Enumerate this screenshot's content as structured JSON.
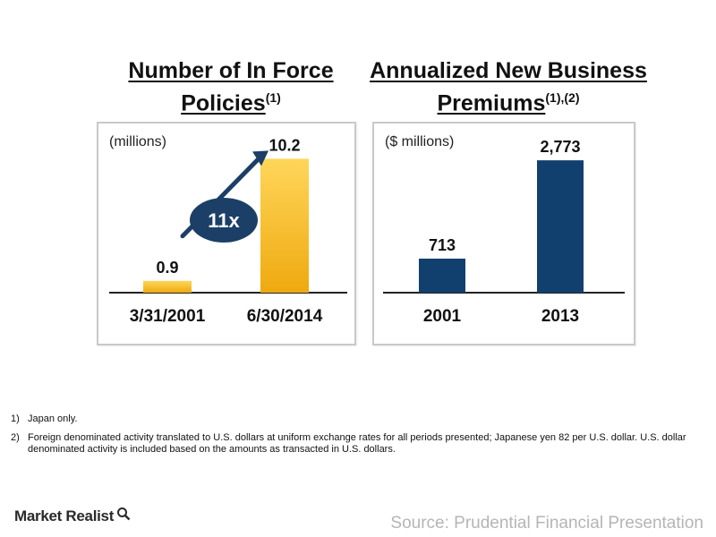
{
  "titles": {
    "left": "Number of In Force Policies",
    "left_sup": "(1)",
    "right": "Annualized New Business Premiums",
    "right_sup": "(1),(2)"
  },
  "chart_data": [
    {
      "type": "bar",
      "unit_label": "(millions)",
      "categories": [
        "3/31/2001",
        "6/30/2014"
      ],
      "values": [
        0.9,
        10.2
      ],
      "value_labels": [
        "0.9",
        "10.2"
      ],
      "ylim": [
        0,
        12
      ],
      "color": "#F5B623",
      "annotation": "11x",
      "annotation_color": "#1B3F66"
    },
    {
      "type": "bar",
      "unit_label": "($ millions)",
      "categories": [
        "2001",
        "2013"
      ],
      "values": [
        713,
        2773
      ],
      "value_labels": [
        "713",
        "2,773"
      ],
      "ylim": [
        0,
        3300
      ],
      "color": "#12406E"
    }
  ],
  "footnotes": [
    {
      "num": "1)",
      "text": "Japan only."
    },
    {
      "num": "2)",
      "text": "Foreign denominated activity translated to U.S. dollars at uniform exchange rates for all periods presented; Japanese yen 82 per U.S. dollar. U.S. dollar denominated activity is included based on the amounts as transacted in U.S. dollars."
    }
  ],
  "brand": "Market Realist",
  "brand_icon": "magnifier-icon",
  "source": "Source: Prudential Financial Presentation"
}
